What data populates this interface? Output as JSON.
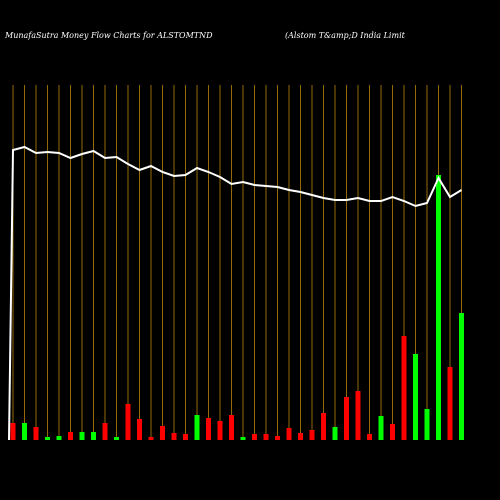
{
  "chart_data": {
    "type": "money-flow",
    "title": "MunafaSutra  Money Flow  Charts for ALSTOMTND",
    "subtitle": "(Alstom T&amp;D India  Limit",
    "categories": [
      null,
      null,
      null,
      null,
      null,
      null,
      null,
      null,
      null,
      null,
      null,
      null,
      null,
      null,
      null,
      null,
      null,
      null,
      null,
      null,
      null,
      null,
      null,
      null,
      null,
      null,
      null,
      null,
      null,
      null,
      null,
      null,
      null,
      null,
      null,
      null,
      null,
      null,
      null,
      null
    ],
    "bars": {
      "values": [
        17,
        17,
        13,
        3,
        4,
        8,
        8,
        8,
        17,
        3,
        36,
        21,
        3,
        14,
        7,
        6,
        25,
        22,
        19,
        25,
        3,
        6,
        6,
        4,
        12,
        7,
        10,
        27,
        13,
        43,
        49,
        6,
        24,
        16,
        104,
        86,
        31,
        265,
        73,
        127
      ],
      "colors": [
        "#ff0000",
        "#00ff00",
        "#ff0000",
        "#00ff00",
        "#00ff00",
        "#ff0000",
        "#00ff00",
        "#00ff00",
        "#ff0000",
        "#00ff00",
        "#ff0000",
        "#ff0000",
        "#ff0000",
        "#ff0000",
        "#ff0000",
        "#ff0000",
        "#00ff00",
        "#ff0000",
        "#ff0000",
        "#ff0000",
        "#00ff00",
        "#ff0000",
        "#ff0000",
        "#ff0000",
        "#ff0000",
        "#ff0000",
        "#ff0000",
        "#ff0000",
        "#00ff00",
        "#ff0000",
        "#ff0000",
        "#ff0000",
        "#00ff00",
        "#ff0000",
        "#ff0000",
        "#00ff00",
        "#00ff00",
        "#00ff00",
        "#ff0000",
        "#00ff00"
      ]
    },
    "line": {
      "color": "#ffffff",
      "values": [
        290,
        293,
        287,
        288,
        287,
        282,
        286,
        289,
        282,
        283,
        276,
        270,
        274,
        268,
        264,
        265,
        272,
        268,
        263,
        256,
        258,
        255,
        254,
        253,
        250,
        248,
        245,
        242,
        240,
        240,
        242,
        239,
        239,
        243,
        239,
        234,
        237,
        262,
        243,
        250
      ]
    },
    "grid": true,
    "grid_color": "#b8860b",
    "background": "#000000"
  }
}
